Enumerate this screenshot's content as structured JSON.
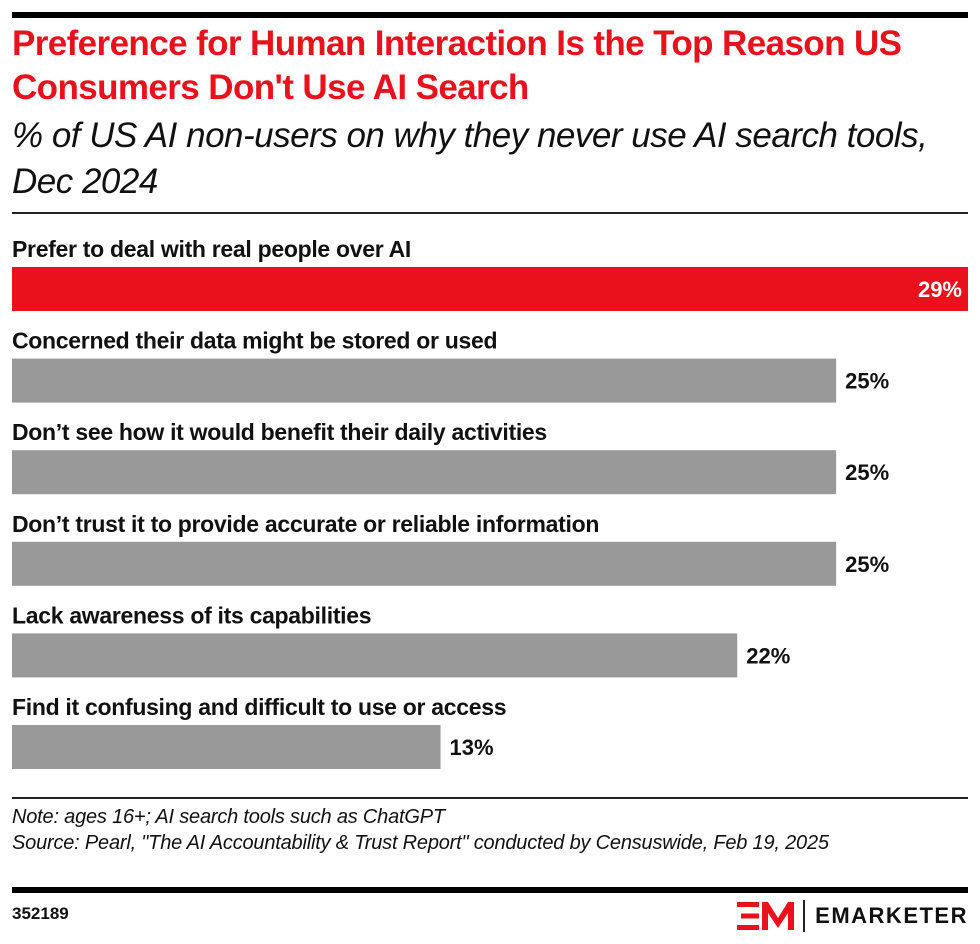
{
  "header": {
    "title": "Preference for Human Interaction Is the Top Reason US Consumers Don't Use AI Search",
    "subtitle": "% of US AI non-users on why they never use AI search tools, Dec 2024"
  },
  "chart_data": {
    "type": "bar",
    "orientation": "horizontal",
    "title": "Preference for Human Interaction Is the Top Reason US Consumers Don't Use AI Search",
    "subtitle": "% of US AI non-users on why they never use AI search tools, Dec 2024",
    "xlabel": "",
    "ylabel": "",
    "unit": "%",
    "xlim": [
      0,
      29
    ],
    "grid": false,
    "legend": "none",
    "categories": [
      "Prefer to deal with real people over AI",
      "Concerned their data might be stored or used",
      "Don’t see how it would benefit their daily activities",
      "Don’t trust it to provide accurate or reliable information",
      "Lack awareness of its capabilities",
      "Find it confusing and difficult to use or access"
    ],
    "values": [
      29,
      25,
      25,
      25,
      22,
      13
    ],
    "value_labels": [
      "29%",
      "25%",
      "25%",
      "25%",
      "22%",
      "13%"
    ],
    "colors": [
      "#e8111c",
      "#999999",
      "#999999",
      "#999999",
      "#999999",
      "#999999"
    ],
    "highlight_color": "#e8111c",
    "bar_color": "#999999"
  },
  "footer": {
    "note": "Note: ages 16+; AI search tools such as ChatGPT",
    "source": "Source: Pearl, \"The AI Accountability & Trust Report\" conducted by Censuswide, Feb 19, 2025",
    "chart_id": "352189",
    "brand_name": "EMARKETER",
    "brand_logo": "em-logo-icon",
    "brand_color": "#e8111c"
  }
}
